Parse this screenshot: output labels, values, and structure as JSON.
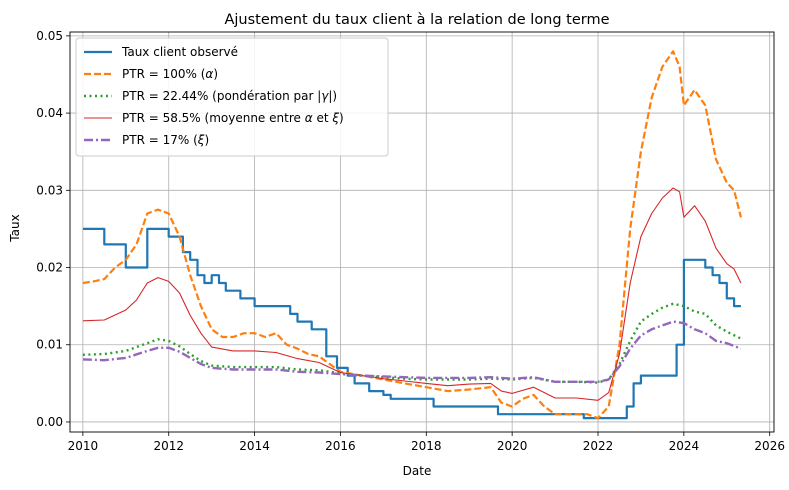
{
  "chart_data": {
    "type": "line",
    "title": "Ajustement du taux client à la relation de long terme",
    "xlabel": "Date",
    "ylabel": "Taux",
    "xlim": [
      2009.7,
      2026.1
    ],
    "ylim": [
      -0.0013,
      0.0505
    ],
    "xticks": [
      2010,
      2012,
      2014,
      2016,
      2018,
      2020,
      2022,
      2024,
      2026
    ],
    "xtick_labels": [
      "2010",
      "2012",
      "2014",
      "2016",
      "2018",
      "2020",
      "2022",
      "2024",
      "2026"
    ],
    "yticks": [
      0.0,
      0.01,
      0.02,
      0.03,
      0.04,
      0.05
    ],
    "ytick_labels": [
      "0.00",
      "0.01",
      "0.02",
      "0.03",
      "0.04",
      "0.05"
    ],
    "grid": true,
    "legend_position": "upper-left",
    "series": [
      {
        "name": "Taux client observé",
        "legend_parts": [
          {
            "t": "Taux client observé",
            "i": false
          }
        ],
        "color": "#1f77b4",
        "style": "solid",
        "width": 2.2,
        "x": [
          2010.0,
          2010.5,
          2010.5,
          2011.0,
          2011.0,
          2011.5,
          2011.5,
          2012.0,
          2012.0,
          2012.33,
          2012.33,
          2012.5,
          2012.5,
          2012.67,
          2012.67,
          2012.83,
          2012.83,
          2013.0,
          2013.0,
          2013.17,
          2013.17,
          2013.33,
          2013.33,
          2013.5,
          2013.5,
          2013.67,
          2013.67,
          2014.0,
          2014.0,
          2014.5,
          2014.5,
          2014.83,
          2014.83,
          2015.0,
          2015.0,
          2015.33,
          2015.33,
          2015.67,
          2015.67,
          2015.92,
          2015.92,
          2016.17,
          2016.17,
          2016.33,
          2016.33,
          2016.5,
          2016.5,
          2016.67,
          2016.67,
          2016.83,
          2016.83,
          2017.0,
          2017.0,
          2017.17,
          2017.17,
          2017.5,
          2017.5,
          2017.67,
          2017.67,
          2018.17,
          2018.17,
          2019.67,
          2019.67,
          2021.67,
          2021.67,
          2022.67,
          2022.67,
          2022.83,
          2022.83,
          2023.0,
          2023.0,
          2023.83,
          2023.83,
          2024.0,
          2024.0,
          2024.5,
          2024.5,
          2024.67,
          2024.67,
          2024.83,
          2024.83,
          2025.0,
          2025.0,
          2025.17,
          2025.17,
          2025.33
        ],
        "y": [
          0.025,
          0.025,
          0.023,
          0.023,
          0.02,
          0.02,
          0.025,
          0.025,
          0.024,
          0.024,
          0.022,
          0.022,
          0.021,
          0.021,
          0.019,
          0.019,
          0.018,
          0.018,
          0.019,
          0.019,
          0.018,
          0.018,
          0.017,
          0.017,
          0.017,
          0.017,
          0.016,
          0.016,
          0.015,
          0.015,
          0.015,
          0.015,
          0.014,
          0.014,
          0.013,
          0.013,
          0.012,
          0.012,
          0.0085,
          0.0085,
          0.007,
          0.007,
          0.006,
          0.006,
          0.005,
          0.005,
          0.005,
          0.005,
          0.004,
          0.004,
          0.004,
          0.004,
          0.0035,
          0.0035,
          0.003,
          0.003,
          0.003,
          0.003,
          0.003,
          0.003,
          0.002,
          0.002,
          0.001,
          0.001,
          0.0005,
          0.0005,
          0.002,
          0.002,
          0.005,
          0.005,
          0.006,
          0.006,
          0.01,
          0.01,
          0.021,
          0.021,
          0.02,
          0.02,
          0.019,
          0.019,
          0.018,
          0.018,
          0.016,
          0.016,
          0.015,
          0.015
        ]
      },
      {
        "name": "PTR = 100% (α)",
        "legend_parts": [
          {
            "t": "PTR = 100% (",
            "i": false
          },
          {
            "t": "α",
            "i": true
          },
          {
            "t": ")",
            "i": false
          }
        ],
        "color": "#ff7f0e",
        "style": "dashed",
        "width": 2.2,
        "x": [
          2010.0,
          2010.25,
          2010.5,
          2010.75,
          2011.0,
          2011.25,
          2011.5,
          2011.75,
          2012.0,
          2012.25,
          2012.5,
          2012.75,
          2013.0,
          2013.25,
          2013.5,
          2013.75,
          2014.0,
          2014.25,
          2014.5,
          2014.75,
          2015.0,
          2015.25,
          2015.5,
          2015.75,
          2016.0,
          2016.5,
          2017.0,
          2017.5,
          2018.0,
          2018.5,
          2019.0,
          2019.5,
          2019.75,
          2020.0,
          2020.25,
          2020.5,
          2020.75,
          2021.0,
          2021.5,
          2021.75,
          2022.0,
          2022.25,
          2022.5,
          2022.75,
          2023.0,
          2023.25,
          2023.5,
          2023.75,
          2023.9,
          2024.0,
          2024.25,
          2024.5,
          2024.75,
          2025.0,
          2025.17,
          2025.33
        ],
        "y": [
          0.018,
          0.0182,
          0.0185,
          0.02,
          0.021,
          0.023,
          0.027,
          0.0275,
          0.027,
          0.024,
          0.019,
          0.015,
          0.012,
          0.011,
          0.011,
          0.0115,
          0.0115,
          0.011,
          0.0115,
          0.01,
          0.0095,
          0.0088,
          0.0085,
          0.0075,
          0.0065,
          0.006,
          0.0055,
          0.005,
          0.0045,
          0.004,
          0.0042,
          0.0045,
          0.0025,
          0.002,
          0.003,
          0.0035,
          0.002,
          0.001,
          0.001,
          0.001,
          0.0005,
          0.002,
          0.01,
          0.025,
          0.035,
          0.042,
          0.046,
          0.048,
          0.046,
          0.041,
          0.043,
          0.041,
          0.034,
          0.031,
          0.03,
          0.0265
        ]
      },
      {
        "name": "PTR = 22.44% (pondération par |γ|)",
        "legend_parts": [
          {
            "t": "PTR = 22.44% (pondération par |",
            "i": false
          },
          {
            "t": "γ",
            "i": true
          },
          {
            "t": "|)",
            "i": false
          }
        ],
        "color": "#2ca02c",
        "style": "dotted",
        "width": 2.4,
        "x": [
          2010.0,
          2010.5,
          2011.0,
          2011.5,
          2011.75,
          2012.0,
          2012.25,
          2012.5,
          2012.75,
          2013.0,
          2013.5,
          2014.0,
          2014.5,
          2015.0,
          2015.5,
          2016.0,
          2016.5,
          2017.0,
          2017.5,
          2018.0,
          2018.5,
          2019.0,
          2019.5,
          2020.0,
          2020.5,
          2021.0,
          2021.5,
          2022.0,
          2022.25,
          2022.5,
          2022.75,
          2023.0,
          2023.25,
          2023.5,
          2023.75,
          2024.0,
          2024.25,
          2024.5,
          2024.75,
          2025.0,
          2025.33
        ],
        "y": [
          0.0087,
          0.0088,
          0.0092,
          0.0102,
          0.0107,
          0.0105,
          0.0098,
          0.0088,
          0.0079,
          0.0073,
          0.0071,
          0.0071,
          0.0071,
          0.0068,
          0.0067,
          0.0063,
          0.006,
          0.0058,
          0.0056,
          0.0055,
          0.0055,
          0.0055,
          0.0056,
          0.0055,
          0.0057,
          0.0052,
          0.0052,
          0.0051,
          0.0055,
          0.0075,
          0.0105,
          0.013,
          0.014,
          0.0148,
          0.0153,
          0.015,
          0.0143,
          0.014,
          0.0125,
          0.0117,
          0.0108
        ]
      },
      {
        "name": "PTR = 58.5% (moyenne entre α et ξ)",
        "legend_parts": [
          {
            "t": "PTR = 58.5% (moyenne entre ",
            "i": false
          },
          {
            "t": "α",
            "i": true
          },
          {
            "t": " et ",
            "i": false
          },
          {
            "t": "ξ",
            "i": true
          },
          {
            "t": ")",
            "i": false
          }
        ],
        "color": "#d62728",
        "style": "solid",
        "width": 1.1,
        "x": [
          2010.0,
          2010.5,
          2011.0,
          2011.25,
          2011.5,
          2011.75,
          2012.0,
          2012.25,
          2012.5,
          2012.75,
          2013.0,
          2013.5,
          2014.0,
          2014.5,
          2015.0,
          2015.5,
          2016.0,
          2016.5,
          2017.0,
          2017.5,
          2018.0,
          2018.5,
          2019.0,
          2019.5,
          2019.75,
          2020.0,
          2020.5,
          2021.0,
          2021.5,
          2022.0,
          2022.25,
          2022.5,
          2022.75,
          2023.0,
          2023.25,
          2023.5,
          2023.75,
          2023.9,
          2024.0,
          2024.25,
          2024.5,
          2024.75,
          2025.0,
          2025.17,
          2025.33
        ],
        "y": [
          0.0131,
          0.0132,
          0.0145,
          0.0158,
          0.018,
          0.0187,
          0.0182,
          0.0167,
          0.0138,
          0.0115,
          0.0097,
          0.0092,
          0.0092,
          0.009,
          0.0082,
          0.0077,
          0.0064,
          0.006,
          0.0056,
          0.0053,
          0.005,
          0.0047,
          0.0049,
          0.005,
          0.004,
          0.0037,
          0.0045,
          0.0031,
          0.0031,
          0.0028,
          0.0038,
          0.0088,
          0.018,
          0.024,
          0.027,
          0.029,
          0.0303,
          0.0298,
          0.0265,
          0.028,
          0.026,
          0.0225,
          0.0205,
          0.0198,
          0.018
        ]
      },
      {
        "name": "PTR = 17% (ξ)",
        "legend_parts": [
          {
            "t": "PTR = 17% (",
            "i": false
          },
          {
            "t": "ξ",
            "i": true
          },
          {
            "t": ")",
            "i": false
          }
        ],
        "color": "#9467bd",
        "style": "dashdot",
        "width": 2.4,
        "x": [
          2010.0,
          2010.5,
          2011.0,
          2011.5,
          2011.75,
          2012.0,
          2012.25,
          2012.5,
          2012.75,
          2013.0,
          2013.5,
          2014.0,
          2014.5,
          2015.0,
          2015.5,
          2016.0,
          2016.5,
          2017.0,
          2017.5,
          2018.0,
          2018.5,
          2019.0,
          2019.5,
          2020.0,
          2020.5,
          2021.0,
          2021.5,
          2022.0,
          2022.25,
          2022.5,
          2022.75,
          2023.0,
          2023.25,
          2023.5,
          2023.75,
          2024.0,
          2024.25,
          2024.5,
          2024.75,
          2025.0,
          2025.33
        ],
        "y": [
          0.0081,
          0.008,
          0.0083,
          0.0092,
          0.0096,
          0.0096,
          0.0091,
          0.0083,
          0.0075,
          0.007,
          0.0068,
          0.0068,
          0.0068,
          0.0065,
          0.0064,
          0.0062,
          0.006,
          0.0059,
          0.0058,
          0.0057,
          0.0057,
          0.0057,
          0.0058,
          0.0056,
          0.0058,
          0.0052,
          0.0052,
          0.0052,
          0.0055,
          0.0072,
          0.0095,
          0.0112,
          0.012,
          0.0125,
          0.013,
          0.0128,
          0.012,
          0.0115,
          0.0105,
          0.0102,
          0.0095
        ]
      }
    ]
  }
}
